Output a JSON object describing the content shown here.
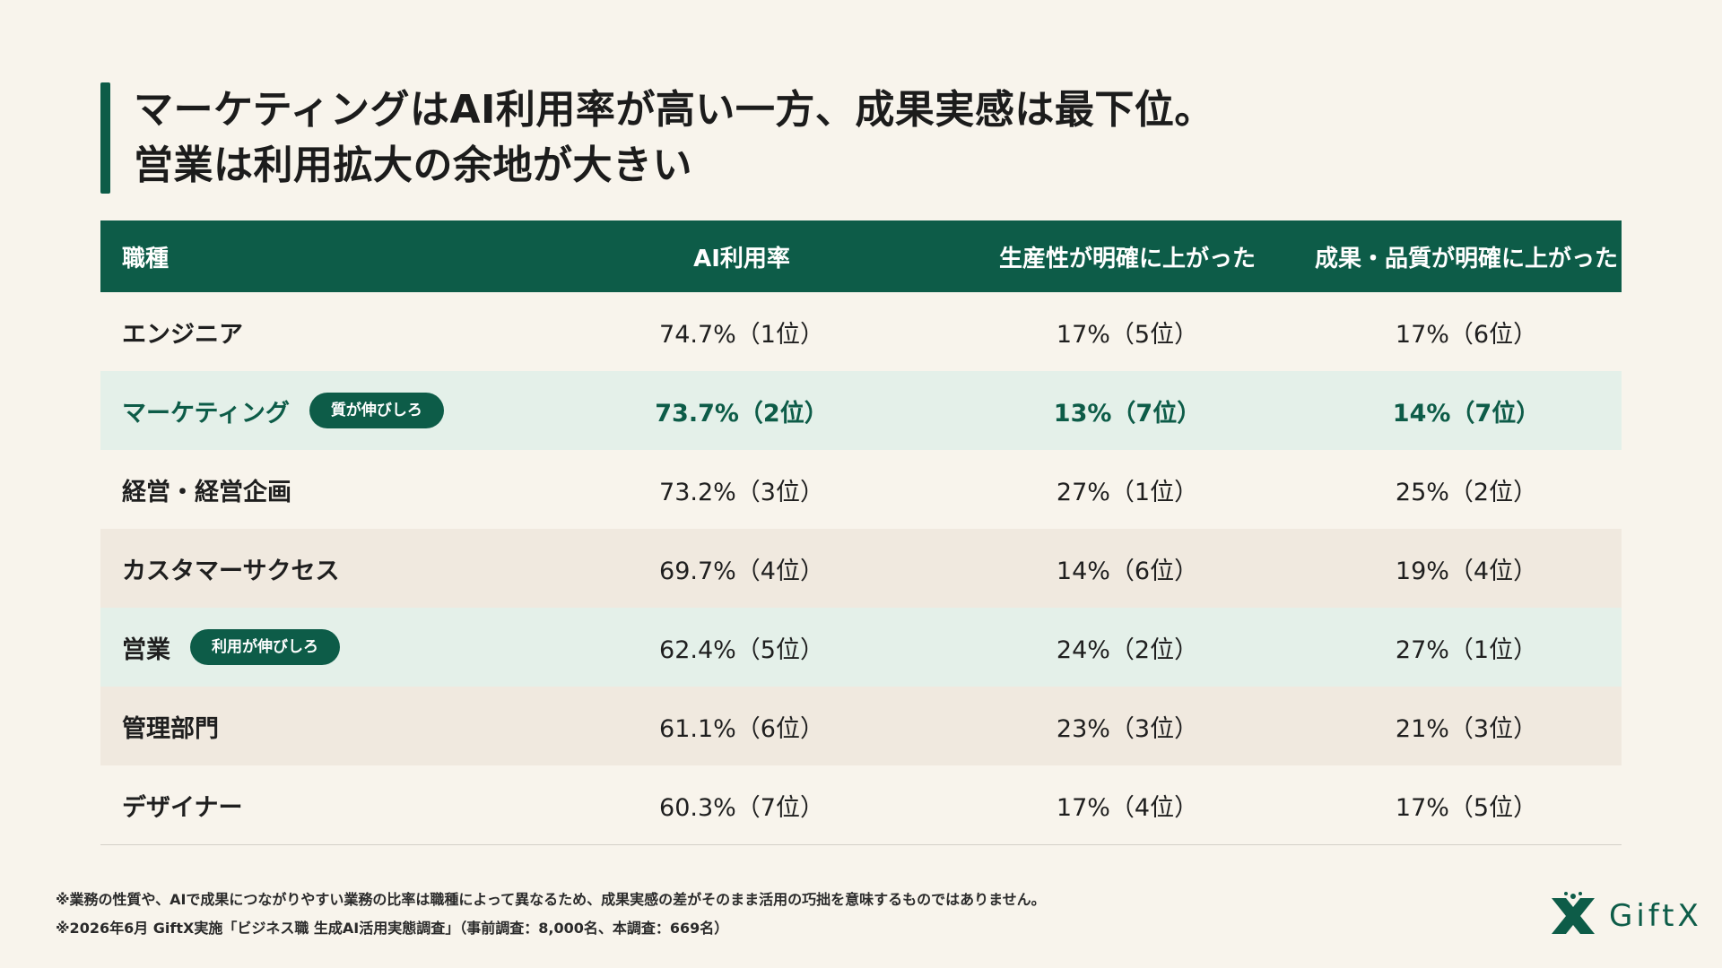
{
  "title": {
    "line1": "マーケティングはAI利用率が高い一方、成果実感は最下位。",
    "line2": "営業は利用拡大の余地が大きい"
  },
  "table": {
    "headers": [
      "職種",
      "AI利用率",
      "生産性が明確に上がった",
      "成果・品質が明確に上がった"
    ],
    "rows": [
      {
        "role": "エンジニア",
        "badge": "",
        "ai": "74.7%（1位）",
        "productivity": "17%（5位）",
        "quality": "17%（6位）"
      },
      {
        "role": "マーケティング",
        "badge": "質が伸びしろ",
        "ai": "73.7%（2位）",
        "productivity": "13%（7位）",
        "quality": "14%（7位）"
      },
      {
        "role": "経営・経営企画",
        "badge": "",
        "ai": "73.2%（3位）",
        "productivity": "27%（1位）",
        "quality": "25%（2位）"
      },
      {
        "role": "カスタマーサクセス",
        "badge": "",
        "ai": "69.7%（4位）",
        "productivity": "14%（6位）",
        "quality": "19%（4位）"
      },
      {
        "role": "営業",
        "badge": "利用が伸びしろ",
        "ai": "62.4%（5位）",
        "productivity": "24%（2位）",
        "quality": "27%（1位）"
      },
      {
        "role": "管理部門",
        "badge": "",
        "ai": "61.1%（6位）",
        "productivity": "23%（3位）",
        "quality": "21%（3位）"
      },
      {
        "role": "デザイナー",
        "badge": "",
        "ai": "60.3%（7位）",
        "productivity": "17%（4位）",
        "quality": "17%（5位）"
      }
    ]
  },
  "footnotes": {
    "note1": "※業務の性質や、AIで成果につながりやすい業務の比率は職種によって異なるため、成果実感の差がそのまま活用の巧拙を意味するものではありません。",
    "note2": "※2026年6月 GiftX実施「ビジネス職 生成AI活用実態調査」（事前調査：8,000名、本調査：669名）"
  },
  "logo": {
    "text": "GiftX",
    "icon": "giftx-logo-icon"
  },
  "colors": {
    "accent": "#0d5c48",
    "background": "#f8f4ec",
    "row_beige": "#f0e9df",
    "row_mint": "#e4f0e9"
  }
}
